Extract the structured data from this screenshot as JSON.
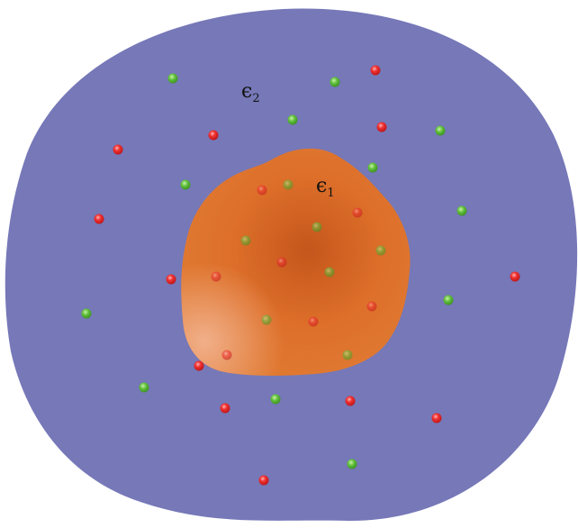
{
  "labels": {
    "outer": {
      "symbol": "ϵ",
      "subscript": "2"
    },
    "inner": {
      "symbol": "ϵ",
      "subscript": "1"
    }
  },
  "colors": {
    "background": "#ffffff",
    "outer_region": "#7678b8",
    "inner_region_center": "#c5561c",
    "inner_region_mid": "#dd6f2a",
    "inner_region_edge": "#e0782f",
    "inner_region_highlight": "#f2b28e",
    "red_ion": "#e8262a",
    "green_ion": "#5fbf3a"
  }
}
